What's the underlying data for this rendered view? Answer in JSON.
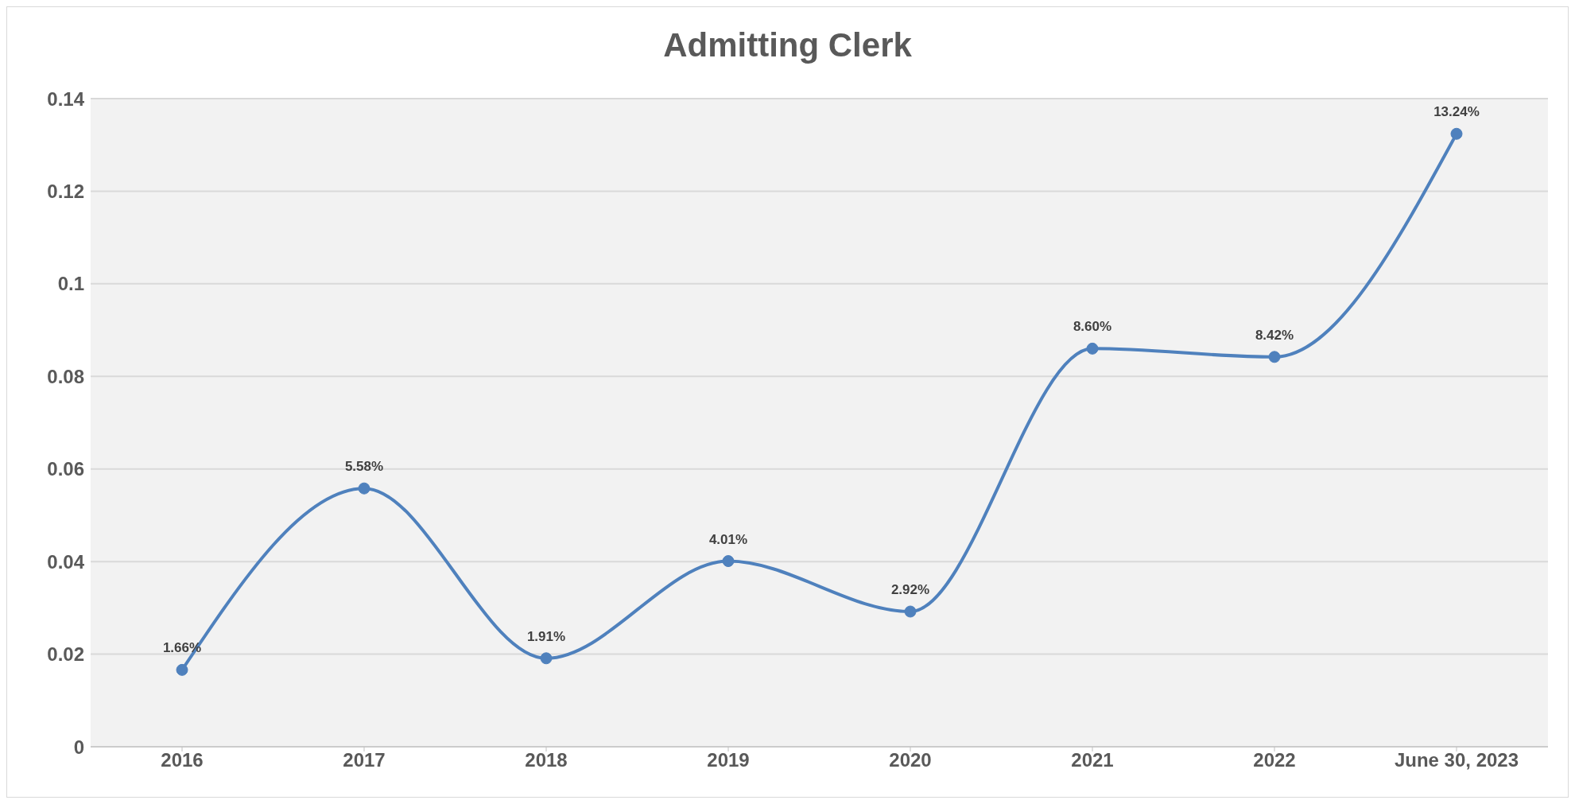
{
  "chart_data": {
    "type": "line",
    "title": "Admitting Clerk",
    "categories": [
      "2016",
      "2017",
      "2018",
      "2019",
      "2020",
      "2021",
      "2022",
      "June 30, 2023"
    ],
    "values": [
      0.0166,
      0.0558,
      0.0191,
      0.0401,
      0.0292,
      0.086,
      0.0842,
      0.1324
    ],
    "value_labels": [
      "1.66%",
      "5.58%",
      "1.91%",
      "4.01%",
      "2.92%",
      "8.60%",
      "8.42%",
      "13.24%"
    ],
    "color": "#4f81bd",
    "ylim": [
      0,
      0.14
    ],
    "yticks": [
      0,
      0.02,
      0.04,
      0.06,
      0.08,
      0.1,
      0.12,
      0.14
    ],
    "grid": "y",
    "marker": "circle",
    "line_style": "solid"
  }
}
